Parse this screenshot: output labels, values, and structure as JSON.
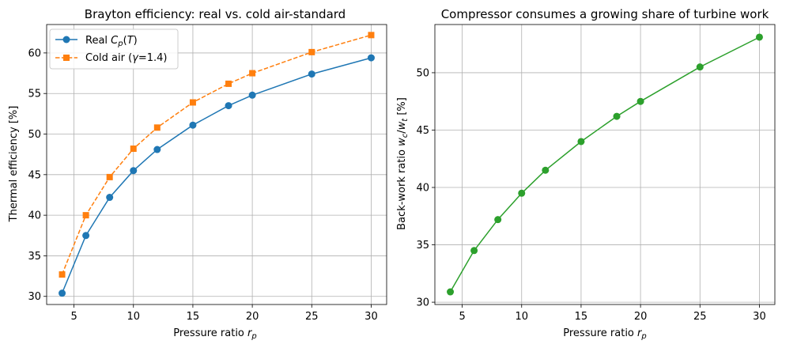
{
  "chart_data": [
    {
      "type": "line",
      "title": "Brayton efficiency: real vs. cold air-standard",
      "xlabel": "Pressure ratio r_p",
      "ylabel": "Thermal efficiency [%]",
      "xlim": [
        2.7,
        31.3
      ],
      "ylim": [
        29.0,
        63.5
      ],
      "xticks": [
        5,
        10,
        15,
        20,
        25,
        30
      ],
      "yticks": [
        30,
        35,
        40,
        45,
        50,
        55,
        60
      ],
      "grid": true,
      "legend_position": "top-left",
      "x": [
        4,
        6,
        8,
        10,
        12,
        15,
        18,
        20,
        25,
        30
      ],
      "series": [
        {
          "name": "Real C_p(T)",
          "color": "#1f77b4",
          "marker": "circle",
          "linestyle": "solid",
          "values": [
            30.4,
            37.5,
            42.2,
            45.5,
            48.1,
            51.1,
            53.5,
            54.8,
            57.4,
            59.4
          ]
        },
        {
          "name": "Cold air (γ=1.4)",
          "color": "#ff7f0e",
          "marker": "square",
          "linestyle": "dashed",
          "values": [
            32.7,
            40.0,
            44.7,
            48.2,
            50.8,
            53.9,
            56.2,
            57.5,
            60.1,
            62.2
          ]
        }
      ]
    },
    {
      "type": "line",
      "title": "Compressor consumes a growing share of turbine work",
      "xlabel": "Pressure ratio r_p",
      "ylabel": "Back-work ratio w_c/w_t [%]",
      "xlim": [
        2.7,
        31.3
      ],
      "ylim": [
        29.8,
        54.2
      ],
      "xticks": [
        5,
        10,
        15,
        20,
        25,
        30
      ],
      "yticks": [
        30,
        35,
        40,
        45,
        50
      ],
      "grid": true,
      "x": [
        4,
        6,
        8,
        10,
        12,
        15,
        18,
        20,
        25,
        30
      ],
      "series": [
        {
          "color": "#2ca02c",
          "marker": "circle",
          "linestyle": "solid",
          "values": [
            30.9,
            34.5,
            37.2,
            39.5,
            41.5,
            44.0,
            46.2,
            47.5,
            50.5,
            53.1
          ]
        }
      ]
    }
  ]
}
